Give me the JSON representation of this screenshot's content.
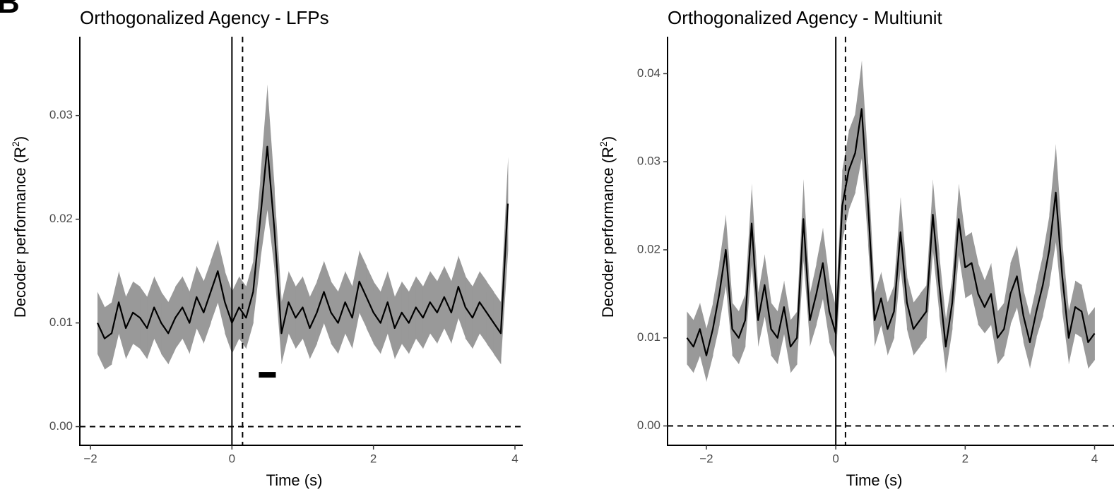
{
  "panel_label": "B",
  "chart_data": [
    {
      "type": "line",
      "title": "Orthogonalized Agency - LFPs",
      "xlabel": "Time (s)",
      "ylabel": {
        "text": "Decoder performance (R",
        "superscript": "2",
        "suffix": ")"
      },
      "x": [
        -1.9,
        -1.8,
        -1.7,
        -1.6,
        -1.5,
        -1.4,
        -1.3,
        -1.2,
        -1.1,
        -1.0,
        -0.9,
        -0.8,
        -0.7,
        -0.6,
        -0.5,
        -0.4,
        -0.3,
        -0.2,
        -0.1,
        0.0,
        0.1,
        0.2,
        0.3,
        0.4,
        0.5,
        0.6,
        0.7,
        0.8,
        0.9,
        1.0,
        1.1,
        1.2,
        1.3,
        1.4,
        1.5,
        1.6,
        1.7,
        1.8,
        1.9,
        2.0,
        2.1,
        2.2,
        2.3,
        2.4,
        2.5,
        2.6,
        2.7,
        2.8,
        2.9,
        3.0,
        3.1,
        3.2,
        3.3,
        3.4,
        3.5,
        3.6,
        3.7,
        3.8,
        3.9
      ],
      "series": [
        {
          "color": "#000000",
          "band_color": "#999999",
          "values": [
            0.01,
            0.0085,
            0.009,
            0.012,
            0.0095,
            0.011,
            0.0105,
            0.0095,
            0.0115,
            0.01,
            0.009,
            0.0105,
            0.0115,
            0.01,
            0.0125,
            0.011,
            0.013,
            0.015,
            0.012,
            0.01,
            0.0115,
            0.0105,
            0.013,
            0.02,
            0.027,
            0.019,
            0.009,
            0.012,
            0.0105,
            0.0115,
            0.0095,
            0.011,
            0.013,
            0.011,
            0.01,
            0.012,
            0.0105,
            0.014,
            0.0125,
            0.011,
            0.01,
            0.012,
            0.0095,
            0.011,
            0.01,
            0.0115,
            0.0105,
            0.012,
            0.011,
            0.0125,
            0.011,
            0.0135,
            0.0115,
            0.0105,
            0.012,
            0.011,
            0.01,
            0.009,
            0.0215
          ],
          "error": [
            0.003,
            0.003,
            0.003,
            0.003,
            0.003,
            0.003,
            0.003,
            0.003,
            0.003,
            0.003,
            0.003,
            0.003,
            0.003,
            0.003,
            0.003,
            0.003,
            0.003,
            0.003,
            0.003,
            0.003,
            0.003,
            0.003,
            0.003,
            0.004,
            0.006,
            0.004,
            0.003,
            0.003,
            0.003,
            0.003,
            0.003,
            0.003,
            0.003,
            0.003,
            0.003,
            0.003,
            0.003,
            0.003,
            0.003,
            0.003,
            0.003,
            0.003,
            0.003,
            0.003,
            0.003,
            0.003,
            0.003,
            0.003,
            0.003,
            0.003,
            0.003,
            0.003,
            0.003,
            0.003,
            0.003,
            0.003,
            0.003,
            0.003,
            0.0045
          ]
        }
      ],
      "xlim": [
        -2.15,
        4.11
      ],
      "ylim": [
        -0.0018,
        0.0376
      ],
      "xticks": [
        {
          "value": -2,
          "label": "−2"
        },
        0,
        2,
        4
      ],
      "yticks": [
        {
          "value": 0,
          "label": "0.00"
        },
        {
          "value": 0.01,
          "label": "0.01"
        },
        {
          "value": 0.02,
          "label": "0.02"
        },
        {
          "value": 0.03,
          "label": "0.03"
        }
      ],
      "reference_lines": {
        "x_solid": 0,
        "x_dashed": 0.15,
        "y_dashed": 0
      },
      "significance": {
        "x": [
          0.4,
          0.6
        ],
        "y": 0.005
      }
    },
    {
      "type": "line",
      "title": "Orthogonalized Agency - Multiunit",
      "xlabel": "Time (s)",
      "ylabel": {
        "text": "Decoder performance (R",
        "superscript": "2",
        "suffix": ")"
      },
      "x": [
        -2.3,
        -2.2,
        -2.1,
        -2.0,
        -1.9,
        -1.8,
        -1.7,
        -1.6,
        -1.5,
        -1.4,
        -1.3,
        -1.2,
        -1.1,
        -1.0,
        -0.9,
        -0.8,
        -0.7,
        -0.6,
        -0.5,
        -0.4,
        -0.3,
        -0.2,
        -0.1,
        0.0,
        0.1,
        0.2,
        0.3,
        0.4,
        0.5,
        0.6,
        0.7,
        0.8,
        0.9,
        1.0,
        1.1,
        1.2,
        1.3,
        1.4,
        1.5,
        1.6,
        1.7,
        1.8,
        1.9,
        2.0,
        2.1,
        2.2,
        2.3,
        2.4,
        2.5,
        2.6,
        2.7,
        2.8,
        2.9,
        3.0,
        3.1,
        3.2,
        3.3,
        3.4,
        3.5,
        3.6,
        3.7,
        3.8,
        3.9,
        4.0
      ],
      "series": [
        {
          "color": "#000000",
          "band_color": "#999999",
          "values": [
            0.01,
            0.009,
            0.011,
            0.008,
            0.011,
            0.015,
            0.02,
            0.011,
            0.01,
            0.012,
            0.023,
            0.012,
            0.016,
            0.011,
            0.01,
            0.0135,
            0.009,
            0.01,
            0.0235,
            0.012,
            0.015,
            0.0185,
            0.013,
            0.0105,
            0.025,
            0.029,
            0.031,
            0.036,
            0.025,
            0.012,
            0.0145,
            0.011,
            0.013,
            0.022,
            0.014,
            0.011,
            0.012,
            0.013,
            0.024,
            0.016,
            0.009,
            0.014,
            0.0235,
            0.018,
            0.0185,
            0.015,
            0.0135,
            0.015,
            0.01,
            0.011,
            0.015,
            0.017,
            0.0125,
            0.0095,
            0.013,
            0.016,
            0.02,
            0.0265,
            0.017,
            0.01,
            0.0135,
            0.013,
            0.0095,
            0.0105
          ],
          "error": [
            0.003,
            0.003,
            0.003,
            0.003,
            0.003,
            0.0035,
            0.004,
            0.003,
            0.003,
            0.003,
            0.0045,
            0.003,
            0.0035,
            0.003,
            0.003,
            0.003,
            0.003,
            0.003,
            0.0045,
            0.003,
            0.0035,
            0.004,
            0.0035,
            0.003,
            0.004,
            0.0045,
            0.0045,
            0.0055,
            0.0045,
            0.003,
            0.003,
            0.003,
            0.003,
            0.004,
            0.003,
            0.003,
            0.003,
            0.003,
            0.004,
            0.0035,
            0.003,
            0.003,
            0.004,
            0.0035,
            0.0035,
            0.0035,
            0.003,
            0.0035,
            0.003,
            0.003,
            0.0035,
            0.0035,
            0.003,
            0.003,
            0.003,
            0.0035,
            0.004,
            0.0055,
            0.004,
            0.003,
            0.003,
            0.003,
            0.003,
            0.003
          ]
        }
      ],
      "xlim": [
        -2.6,
        4.3
      ],
      "ylim": [
        -0.0022,
        0.0442
      ],
      "xticks": [
        {
          "value": -2,
          "label": "−2"
        },
        0,
        2,
        4
      ],
      "yticks": [
        {
          "value": 0,
          "label": "0.00"
        },
        {
          "value": 0.01,
          "label": "0.01"
        },
        {
          "value": 0.02,
          "label": "0.02"
        },
        {
          "value": 0.03,
          "label": "0.03"
        },
        {
          "value": 0.04,
          "label": "0.04"
        }
      ],
      "reference_lines": {
        "x_solid": 0,
        "x_dashed": 0.15,
        "y_dashed": 0
      }
    }
  ]
}
